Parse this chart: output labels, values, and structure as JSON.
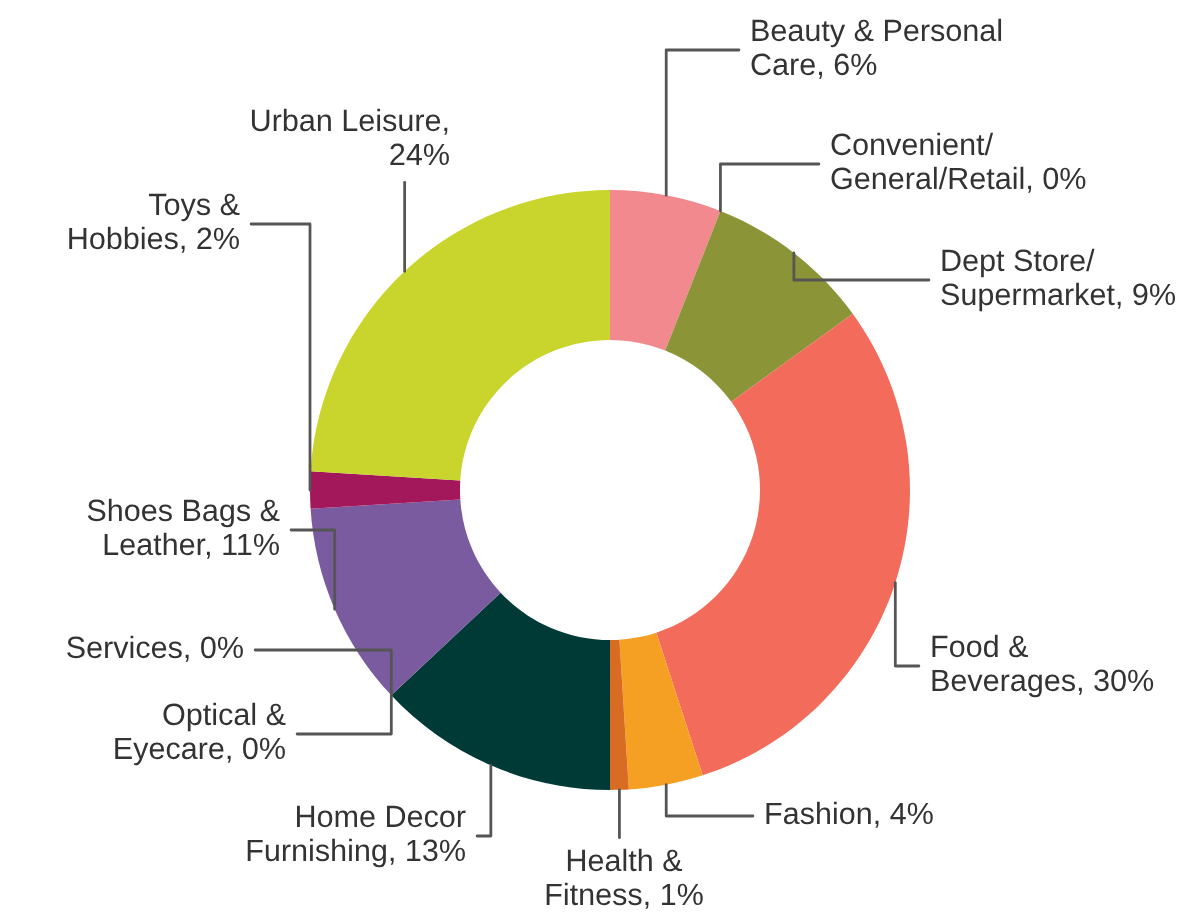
{
  "chart_data": {
    "type": "donut",
    "categories": [
      "Beauty & Personal\nCare, 6%",
      "Convenient/\nGeneral/Retail, 0%",
      "Dept Store/\nSupermarket, 9%",
      "Food &\nBeverages, 30%",
      "Fashion, 4%",
      "Health &\nFitness, 1%",
      "Home Decor\nFurnishing, 13%",
      "Optical &\nEyecare, 0%",
      "Services, 0%",
      "Shoes Bags &\nLeather, 11%",
      "Toys &\nHobbies, 2%",
      "Urban Leisure,\n24%"
    ],
    "values": [
      6,
      0,
      9,
      30,
      4,
      1,
      13,
      0,
      0,
      11,
      2,
      24
    ],
    "colors": [
      "#f2898f",
      "#8c9438",
      "#8c9438",
      "#f36b5a",
      "#f5a023",
      "#d96c23",
      "#003a36",
      "#7a5ba0",
      "#7a5ba0",
      "#7a5ba0",
      "#a3185b",
      "#c9d42c"
    ]
  }
}
